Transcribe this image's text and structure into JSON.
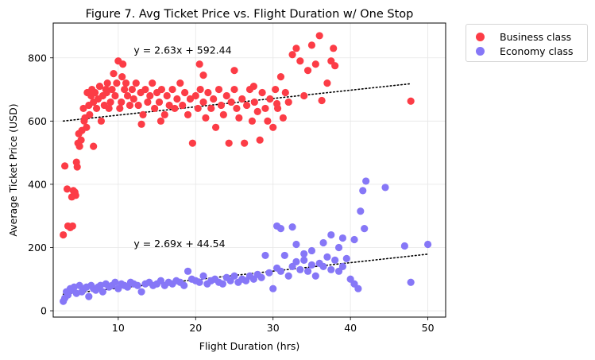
{
  "chart_data": {
    "type": "scatter",
    "title": "Figure 7. Avg Ticket Price vs. Flight Duration w/ One Stop",
    "xlabel": "Flight Duration (hrs)",
    "ylabel": "Average Ticket Price (USD)",
    "xlim": [
      1.6,
      52.3
    ],
    "ylim": [
      -20,
      910
    ],
    "xticks": [
      10,
      20,
      30,
      40,
      50
    ],
    "yticks": [
      0,
      200,
      400,
      600,
      800
    ],
    "grid": true,
    "legend_position": "outside-top-right",
    "series": [
      {
        "name": "Business class",
        "color": "#fc3c46",
        "points": [
          [
            2.9,
            240
          ],
          [
            3.1,
            458
          ],
          [
            3.4,
            385
          ],
          [
            3.5,
            268
          ],
          [
            3.8,
            263
          ],
          [
            4.0,
            360
          ],
          [
            4.1,
            268
          ],
          [
            4.2,
            380
          ],
          [
            4.4,
            375
          ],
          [
            4.5,
            365
          ],
          [
            4.6,
            470
          ],
          [
            4.7,
            455
          ],
          [
            4.8,
            530
          ],
          [
            4.9,
            560
          ],
          [
            5.0,
            520
          ],
          [
            5.2,
            540
          ],
          [
            5.3,
            570
          ],
          [
            5.5,
            640
          ],
          [
            5.6,
            600
          ],
          [
            5.7,
            610
          ],
          [
            5.9,
            580
          ],
          [
            6.0,
            690
          ],
          [
            6.2,
            650
          ],
          [
            6.3,
            620
          ],
          [
            6.5,
            680
          ],
          [
            6.6,
            700
          ],
          [
            6.8,
            660
          ],
          [
            7.0,
            690
          ],
          [
            7.2,
            640
          ],
          [
            7.4,
            670
          ],
          [
            7.6,
            710
          ],
          [
            7.8,
            600
          ],
          [
            8.0,
            680
          ],
          [
            8.2,
            650
          ],
          [
            8.4,
            700
          ],
          [
            8.6,
            720
          ],
          [
            8.8,
            640
          ],
          [
            9.0,
            660
          ],
          [
            9.2,
            700
          ],
          [
            9.4,
            750
          ],
          [
            9.6,
            680
          ],
          [
            9.8,
            720
          ],
          [
            10.0,
            790
          ],
          [
            10.2,
            640
          ],
          [
            10.4,
            660
          ],
          [
            10.6,
            780
          ],
          [
            10.8,
            700
          ],
          [
            11.0,
            720
          ],
          [
            11.2,
            680
          ],
          [
            11.5,
            650
          ],
          [
            11.8,
            700
          ],
          [
            12.0,
            670
          ],
          [
            12.3,
            720
          ],
          [
            12.6,
            650
          ],
          [
            12.9,
            690
          ],
          [
            13.2,
            620
          ],
          [
            13.5,
            700
          ],
          [
            13.8,
            660
          ],
          [
            14.1,
            680
          ],
          [
            14.4,
            720
          ],
          [
            14.7,
            640
          ],
          [
            15.0,
            690
          ],
          [
            15.3,
            660
          ],
          [
            15.6,
            700
          ],
          [
            16.0,
            620
          ],
          [
            16.3,
            680
          ],
          [
            16.6,
            650
          ],
          [
            17.0,
            700
          ],
          [
            17.3,
            640
          ],
          [
            17.6,
            670
          ],
          [
            18.0,
            720
          ],
          [
            18.3,
            650
          ],
          [
            18.6,
            690
          ],
          [
            19.0,
            620
          ],
          [
            19.3,
            670
          ],
          [
            19.6,
            530
          ],
          [
            20.0,
            680
          ],
          [
            20.3,
            640
          ],
          [
            20.6,
            700
          ],
          [
            21.0,
            660
          ],
          [
            21.3,
            610
          ],
          [
            21.6,
            690
          ],
          [
            22.0,
            640
          ],
          [
            22.3,
            670
          ],
          [
            22.6,
            580
          ],
          [
            23.0,
            700
          ],
          [
            23.3,
            650
          ],
          [
            23.6,
            620
          ],
          [
            24.0,
            680
          ],
          [
            24.3,
            530
          ],
          [
            24.6,
            660
          ],
          [
            25.0,
            700
          ],
          [
            25.3,
            640
          ],
          [
            25.6,
            610
          ],
          [
            26.0,
            670
          ],
          [
            26.3,
            530
          ],
          [
            26.6,
            650
          ],
          [
            27.0,
            700
          ],
          [
            27.3,
            600
          ],
          [
            27.6,
            660
          ],
          [
            28.0,
            630
          ],
          [
            28.3,
            540
          ],
          [
            28.6,
            690
          ],
          [
            29.0,
            640
          ],
          [
            29.3,
            600
          ],
          [
            29.6,
            670
          ],
          [
            30.0,
            580
          ],
          [
            30.3,
            700
          ],
          [
            30.6,
            640
          ],
          [
            31.0,
            740
          ],
          [
            31.3,
            610
          ],
          [
            31.6,
            690
          ],
          [
            32.0,
            660
          ],
          [
            32.5,
            810
          ],
          [
            33.0,
            830
          ],
          [
            33.5,
            790
          ],
          [
            34.0,
            680
          ],
          [
            34.5,
            760
          ],
          [
            35.0,
            840
          ],
          [
            35.5,
            780
          ],
          [
            36.0,
            870
          ],
          [
            36.3,
            665
          ],
          [
            37.0,
            720
          ],
          [
            37.5,
            790
          ],
          [
            37.8,
            830
          ],
          [
            38.0,
            775
          ],
          [
            21.0,
            745
          ],
          [
            25.0,
            760
          ],
          [
            27.5,
            710
          ],
          [
            30.5,
            655
          ],
          [
            20.5,
            780
          ],
          [
            13.0,
            590
          ],
          [
            15.5,
            600
          ],
          [
            10.5,
            740
          ],
          [
            8.5,
            690
          ],
          [
            6.8,
            520
          ],
          [
            47.8,
            663
          ]
        ]
      },
      {
        "name": "Economy class",
        "color": "#8677f7",
        "points": [
          [
            2.9,
            30
          ],
          [
            3.1,
            40
          ],
          [
            3.3,
            60
          ],
          [
            3.5,
            50
          ],
          [
            3.8,
            70
          ],
          [
            4.0,
            65
          ],
          [
            4.3,
            75
          ],
          [
            4.6,
            55
          ],
          [
            5.0,
            80
          ],
          [
            5.3,
            60
          ],
          [
            5.6,
            70
          ],
          [
            5.9,
            75
          ],
          [
            6.2,
            45
          ],
          [
            6.5,
            80
          ],
          [
            6.8,
            70
          ],
          [
            7.1,
            65
          ],
          [
            7.4,
            75
          ],
          [
            7.7,
            80
          ],
          [
            8.0,
            60
          ],
          [
            8.4,
            85
          ],
          [
            8.8,
            75
          ],
          [
            9.2,
            80
          ],
          [
            9.6,
            90
          ],
          [
            10.0,
            70
          ],
          [
            10.4,
            85
          ],
          [
            10.8,
            80
          ],
          [
            11.2,
            75
          ],
          [
            11.6,
            90
          ],
          [
            12.0,
            85
          ],
          [
            12.5,
            80
          ],
          [
            13.0,
            60
          ],
          [
            13.5,
            85
          ],
          [
            14.0,
            90
          ],
          [
            14.5,
            80
          ],
          [
            15.0,
            85
          ],
          [
            15.5,
            95
          ],
          [
            16.0,
            80
          ],
          [
            16.5,
            90
          ],
          [
            17.0,
            85
          ],
          [
            17.5,
            95
          ],
          [
            18.0,
            90
          ],
          [
            18.5,
            80
          ],
          [
            19.0,
            125
          ],
          [
            19.5,
            100
          ],
          [
            20.0,
            95
          ],
          [
            20.5,
            90
          ],
          [
            21.0,
            110
          ],
          [
            21.5,
            85
          ],
          [
            22.0,
            95
          ],
          [
            22.5,
            100
          ],
          [
            23.0,
            90
          ],
          [
            23.5,
            85
          ],
          [
            24.0,
            105
          ],
          [
            24.5,
            95
          ],
          [
            25.0,
            110
          ],
          [
            25.5,
            90
          ],
          [
            26.0,
            100
          ],
          [
            26.5,
            95
          ],
          [
            27.0,
            110
          ],
          [
            27.5,
            100
          ],
          [
            28.0,
            115
          ],
          [
            28.5,
            105
          ],
          [
            29.0,
            175
          ],
          [
            29.5,
            120
          ],
          [
            30.0,
            70
          ],
          [
            30.5,
            135
          ],
          [
            31.0,
            125
          ],
          [
            31.5,
            175
          ],
          [
            32.0,
            110
          ],
          [
            32.5,
            140
          ],
          [
            33.0,
            155
          ],
          [
            33.5,
            130
          ],
          [
            34.0,
            160
          ],
          [
            34.5,
            125
          ],
          [
            35.0,
            145
          ],
          [
            35.5,
            110
          ],
          [
            36.0,
            150
          ],
          [
            36.5,
            140
          ],
          [
            37.0,
            170
          ],
          [
            37.5,
            130
          ],
          [
            38.0,
            160
          ],
          [
            38.5,
            125
          ],
          [
            39.0,
            140
          ],
          [
            39.5,
            165
          ],
          [
            40.0,
            100
          ],
          [
            40.5,
            85
          ],
          [
            41.0,
            70
          ],
          [
            41.3,
            315
          ],
          [
            41.6,
            380
          ],
          [
            42.0,
            410
          ],
          [
            44.5,
            390
          ],
          [
            30.5,
            268
          ],
          [
            32.5,
            265
          ],
          [
            33.0,
            210
          ],
          [
            35.0,
            190
          ],
          [
            36.5,
            215
          ],
          [
            37.5,
            240
          ],
          [
            39.0,
            230
          ],
          [
            40.5,
            225
          ],
          [
            41.8,
            260
          ],
          [
            47.0,
            205
          ],
          [
            47.8,
            90
          ],
          [
            50.0,
            210
          ],
          [
            31.0,
            260
          ],
          [
            34.0,
            180
          ],
          [
            38.5,
            200
          ]
        ]
      }
    ],
    "trendlines": [
      {
        "series": "Business class",
        "x_range": [
          2.9,
          47.8
        ],
        "slope": 2.63,
        "intercept": 592.44,
        "label": "y = 2.63x + 592.44",
        "label_anchor": [
          12.0,
          825
        ]
      },
      {
        "series": "Economy class",
        "x_range": [
          2.9,
          50.0
        ],
        "slope": 2.69,
        "intercept": 44.54,
        "label": "y = 2.69x + 44.54",
        "label_anchor": [
          12.0,
          212
        ]
      }
    ]
  }
}
